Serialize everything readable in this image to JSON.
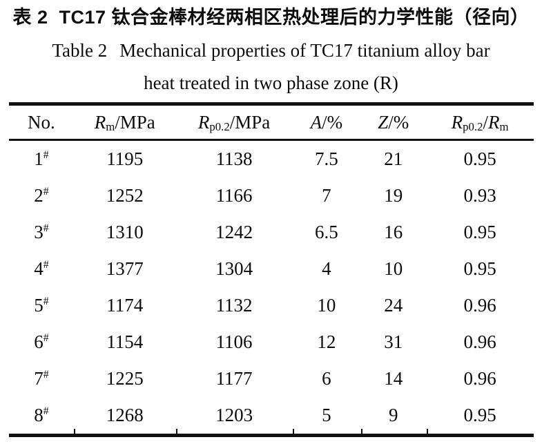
{
  "page": {
    "background": "#ffffff",
    "text_color": "#0c0c0c",
    "rule_color": "#111111"
  },
  "caption": {
    "zh_label": "表 2",
    "zh_title": "TC17 钛合金棒材经两相区热处理后的力学性能（径向）",
    "en_label": "Table 2",
    "en_title_line1": "Mechanical properties of TC17 titanium alloy bar",
    "en_title_line2": "heat treated in two phase zone (R)"
  },
  "table": {
    "columns": [
      {
        "kind": "plain",
        "text": "No."
      },
      {
        "kind": "symbol",
        "sym": "R",
        "sub": "m",
        "suffix": "/MPa"
      },
      {
        "kind": "symbol",
        "sym": "R",
        "sub": "p0.2",
        "suffix": "/MPa"
      },
      {
        "kind": "symbol",
        "sym": "A",
        "sub": "",
        "suffix": "/%"
      },
      {
        "kind": "symbol",
        "sym": "Z",
        "sub": "",
        "suffix": "/%"
      },
      {
        "kind": "ratio",
        "sym1": "R",
        "sub1": "p0.2",
        "slash": "/",
        "sym2": "R",
        "sub2": "m"
      }
    ],
    "rows": [
      {
        "no": "1",
        "mark": "#",
        "rm": "1195",
        "rp02": "1138",
        "a": "7.5",
        "z": "21",
        "ratio": "0.95"
      },
      {
        "no": "2",
        "mark": "#",
        "rm": "1252",
        "rp02": "1166",
        "a": "7",
        "z": "19",
        "ratio": "0.93"
      },
      {
        "no": "3",
        "mark": "#",
        "rm": "1310",
        "rp02": "1242",
        "a": "6.5",
        "z": "16",
        "ratio": "0.95"
      },
      {
        "no": "4",
        "mark": "#",
        "rm": "1377",
        "rp02": "1304",
        "a": "4",
        "z": "10",
        "ratio": "0.95"
      },
      {
        "no": "5",
        "mark": "#",
        "rm": "1174",
        "rp02": "1132",
        "a": "10",
        "z": "24",
        "ratio": "0.96"
      },
      {
        "no": "6",
        "mark": "#",
        "rm": "1154",
        "rp02": "1106",
        "a": "12",
        "z": "31",
        "ratio": "0.96"
      },
      {
        "no": "7",
        "mark": "#",
        "rm": "1225",
        "rp02": "1177",
        "a": "6",
        "z": "14",
        "ratio": "0.96"
      },
      {
        "no": "8",
        "mark": "#",
        "rm": "1268",
        "rp02": "1203",
        "a": "5",
        "z": "9",
        "ratio": "0.95"
      }
    ]
  }
}
